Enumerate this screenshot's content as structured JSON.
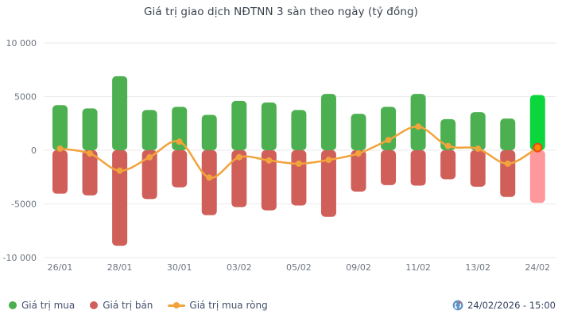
{
  "title": "Giá trị giao dịch NĐTNN 3 sàn theo ngày (tỷ đồng)",
  "chart_data": {
    "type": "bar",
    "title": "Giá trị giao dịch NĐTNN 3 sàn theo ngày (tỷ đồng)",
    "categories": [
      "26/01",
      "",
      "28/01",
      "",
      "30/01",
      "",
      "03/02",
      "",
      "05/02",
      "",
      "09/02",
      "",
      "11/02",
      "",
      "13/02",
      "",
      "24/02"
    ],
    "series": [
      {
        "name": "Giá trị mua",
        "type": "bar",
        "color": "#4caf50",
        "highlight_last_color": "#0bd63c",
        "values": [
          4200,
          3900,
          6900,
          3750,
          4050,
          3300,
          4600,
          4450,
          3750,
          5250,
          3400,
          4050,
          5250,
          2900,
          3550,
          2950,
          5150
        ]
      },
      {
        "name": "Giá trị bán",
        "type": "bar",
        "color": "#d05f5a",
        "highlight_last_color": "#ff989c",
        "values": [
          -4050,
          -4200,
          -8900,
          -4550,
          -3450,
          -6050,
          -5300,
          -5600,
          -5150,
          -6200,
          -3850,
          -3250,
          -3300,
          -2700,
          -3400,
          -4350,
          -4900
        ]
      },
      {
        "name": "Giá trị mua ròng",
        "type": "line",
        "color": "#f2a33c",
        "last_point_fill": "#fb8c00",
        "last_point_stroke": "#e64a19",
        "values": [
          150,
          -300,
          -1900,
          -650,
          800,
          -2550,
          -650,
          -950,
          -1250,
          -900,
          -300,
          950,
          2200,
          400,
          150,
          -1250,
          250
        ]
      }
    ],
    "ylim": [
      -10000,
      10000
    ],
    "yticks": [
      {
        "value": 10000,
        "label": "10 000"
      },
      {
        "value": 5000,
        "label": "5000"
      },
      {
        "value": 0,
        "label": "0"
      },
      {
        "value": -5000,
        "label": "-5000"
      },
      {
        "value": -10000,
        "label": "-10 000"
      }
    ],
    "grid": true,
    "legend_position": "bottom-left",
    "highlight_last": true
  },
  "legend": {
    "items": [
      {
        "label": "Giá trị mua",
        "color": "#4caf50",
        "marker": "dot"
      },
      {
        "label": "Giá trị bán",
        "color": "#d05f5a",
        "marker": "dot"
      },
      {
        "label": "Giá trị mua ròng",
        "color": "#f2a33c",
        "marker": "line-dot"
      }
    ]
  },
  "footer": {
    "timestamp": "24/02/2026 - 15:00",
    "refresh_icon": "sync-icon"
  },
  "colors": {
    "background": "#ffffff",
    "grid": "#e9e9e9",
    "axis_text": "#6d757f",
    "legend_text": "#44506b",
    "timestamp_text": "#33415e",
    "refresh_icon_blue": "#5f93c9",
    "refresh_icon_red": "#e05a4e"
  }
}
